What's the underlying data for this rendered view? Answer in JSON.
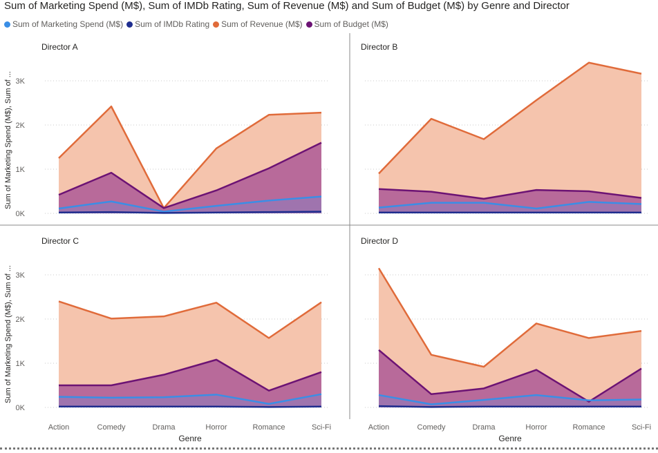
{
  "title": "Sum of Marketing Spend (M$), Sum of IMDb Rating, Sum of Revenue (M$) and Sum of Budget (M$) by Genre and Director",
  "colors": {
    "marketing": "#3a8ee6",
    "imdb": "#1f2e8f",
    "revenue": "#e06b3a",
    "budget": "#6c1374",
    "revenue_fill": "#f5c4ad",
    "budget_fill": "#b86a9a",
    "marketing_fill": "#8a7cc0"
  },
  "chart_data": {
    "type": "area",
    "title": "Sum of Marketing Spend (M$), Sum of IMDb Rating, Sum of Revenue (M$) and Sum of Budget (M$) by Genre and Director",
    "xlabel": "Genre",
    "ylabel": "Sum of Marketing Spend (M$), Sum of ...",
    "categories": [
      "Action",
      "Comedy",
      "Drama",
      "Horror",
      "Romance",
      "Sci-Fi"
    ],
    "y_ticks": [
      "0K",
      "1K",
      "2K",
      "3K"
    ],
    "ylim": [
      0,
      3500
    ],
    "grid": true,
    "legend": "top-left",
    "series_names": [
      "Sum of Marketing Spend (M$)",
      "Sum of IMDb Rating",
      "Sum of Revenue (M$)",
      "Sum of Budget (M$)"
    ],
    "panels": [
      {
        "director": "Director A",
        "revenue": [
          1250,
          2420,
          120,
          1470,
          2230,
          2280
        ],
        "budget": [
          420,
          920,
          120,
          520,
          1020,
          1600
        ],
        "marketing": [
          110,
          270,
          40,
          170,
          290,
          380
        ],
        "imdb": [
          20,
          30,
          10,
          20,
          30,
          40
        ]
      },
      {
        "director": "Director B",
        "revenue": [
          900,
          2140,
          1680,
          2560,
          3410,
          3160
        ],
        "budget": [
          550,
          490,
          330,
          530,
          500,
          350
        ],
        "marketing": [
          130,
          240,
          240,
          110,
          260,
          210
        ],
        "imdb": [
          20,
          20,
          20,
          20,
          20,
          20
        ]
      },
      {
        "director": "Director C",
        "revenue": [
          2400,
          2010,
          2060,
          2370,
          1570,
          2380
        ],
        "budget": [
          500,
          500,
          740,
          1080,
          380,
          800
        ],
        "marketing": [
          240,
          220,
          230,
          290,
          80,
          300
        ],
        "imdb": [
          20,
          20,
          20,
          20,
          10,
          20
        ]
      },
      {
        "director": "Director D",
        "revenue": [
          3150,
          1190,
          920,
          1900,
          1570,
          1730
        ],
        "budget": [
          1300,
          300,
          430,
          850,
          130,
          880
        ],
        "marketing": [
          280,
          70,
          170,
          280,
          160,
          180
        ],
        "imdb": [
          30,
          10,
          20,
          20,
          20,
          20
        ]
      }
    ]
  }
}
